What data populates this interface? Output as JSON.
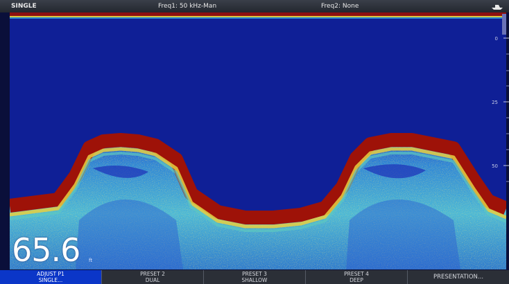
{
  "topbar": {
    "mode": "SINGLE",
    "freq1": "Freq1: 50 kHz-Man",
    "freq2": "Freq2: None"
  },
  "display": {
    "depth": "65.6",
    "depth_unit": "ft",
    "scale_ticks": [
      "0",
      "25",
      "50"
    ]
  },
  "softkeys": [
    {
      "line1": "ADJUST P1",
      "line2": "SINGLE...",
      "active": true
    },
    {
      "line1": "PRESET 2",
      "line2": "DUAL",
      "active": false
    },
    {
      "line1": "PRESET 3",
      "line2": "SHALLOW",
      "active": false
    },
    {
      "line1": "PRESET 4",
      "line2": "DEEP",
      "active": false
    },
    {
      "line1": "PRESENTATION...",
      "line2": "",
      "active": false
    }
  ],
  "colors": {
    "water": "#0f1f96",
    "bottom_edge": "#9e1208",
    "bottom_mid": "#d8c840",
    "bottom_fill": "#3aa0d8",
    "active_softkey": "#0b36c8"
  }
}
